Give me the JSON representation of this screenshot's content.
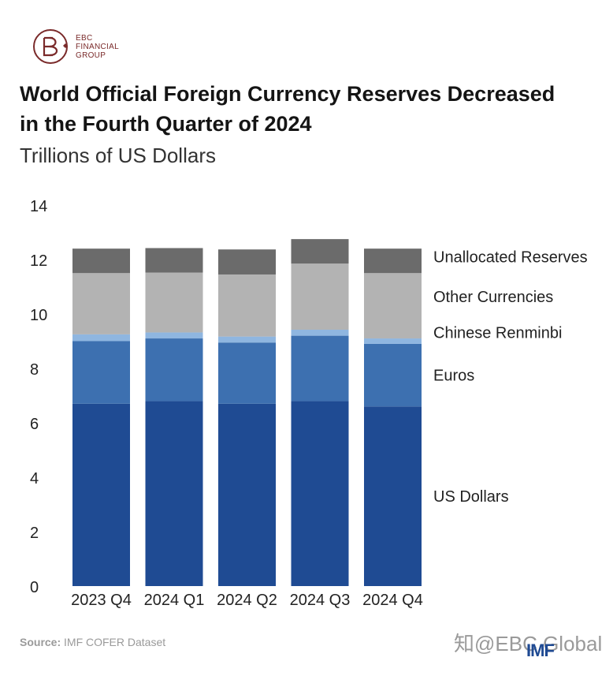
{
  "header": {
    "logo_line1": "EBC",
    "logo_line2": "FINANCIAL",
    "logo_line3": "GROUP",
    "title_line1": "World Official Foreign Currency Reserves Decreased",
    "title_line2": "in the Fourth Quarter of 2024",
    "subtitle": "Trillions of US Dollars"
  },
  "footer": {
    "source_label": "Source:",
    "source_text": " IMF COFER Dataset",
    "watermark": "知@EBC Global",
    "imf_logo": "IMF"
  },
  "chart_data": {
    "type": "bar",
    "stacked": true,
    "categories": [
      "2023 Q4",
      "2024 Q1",
      "2024 Q2",
      "2024 Q3",
      "2024 Q4"
    ],
    "ylim": [
      0,
      14
    ],
    "yticks": [
      0,
      2,
      4,
      6,
      8,
      10,
      12,
      14
    ],
    "grid": false,
    "legend": "right, labels beside top bar",
    "series": [
      {
        "name": "US Dollars",
        "color": "#1f4b93",
        "values": [
          6.7,
          6.8,
          6.7,
          6.8,
          6.6
        ]
      },
      {
        "name": "Euros",
        "color": "#3d70b0",
        "values": [
          2.3,
          2.3,
          2.25,
          2.4,
          2.3
        ]
      },
      {
        "name": "Chinese Renminbi",
        "color": "#8fb6e0",
        "values": [
          0.25,
          0.22,
          0.22,
          0.22,
          0.2
        ]
      },
      {
        "name": "Other Currencies",
        "color": "#b3b3b3",
        "values": [
          2.25,
          2.2,
          2.28,
          2.43,
          2.4
        ]
      },
      {
        "name": "Unallocated Reserves",
        "color": "#6b6b6b",
        "values": [
          0.9,
          0.9,
          0.92,
          0.9,
          0.9
        ]
      }
    ]
  }
}
